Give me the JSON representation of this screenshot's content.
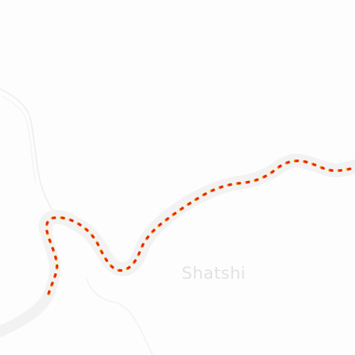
{
  "map": {
    "place_label": "Shatshi",
    "colors": {
      "background": "#fdfdfd",
      "river_shadow": "#f2f2f2",
      "terrain_line": "#ececec",
      "route_red": "#e8261f",
      "route_orange": "#f5a300"
    },
    "route_style": "dashed-red-orange"
  }
}
